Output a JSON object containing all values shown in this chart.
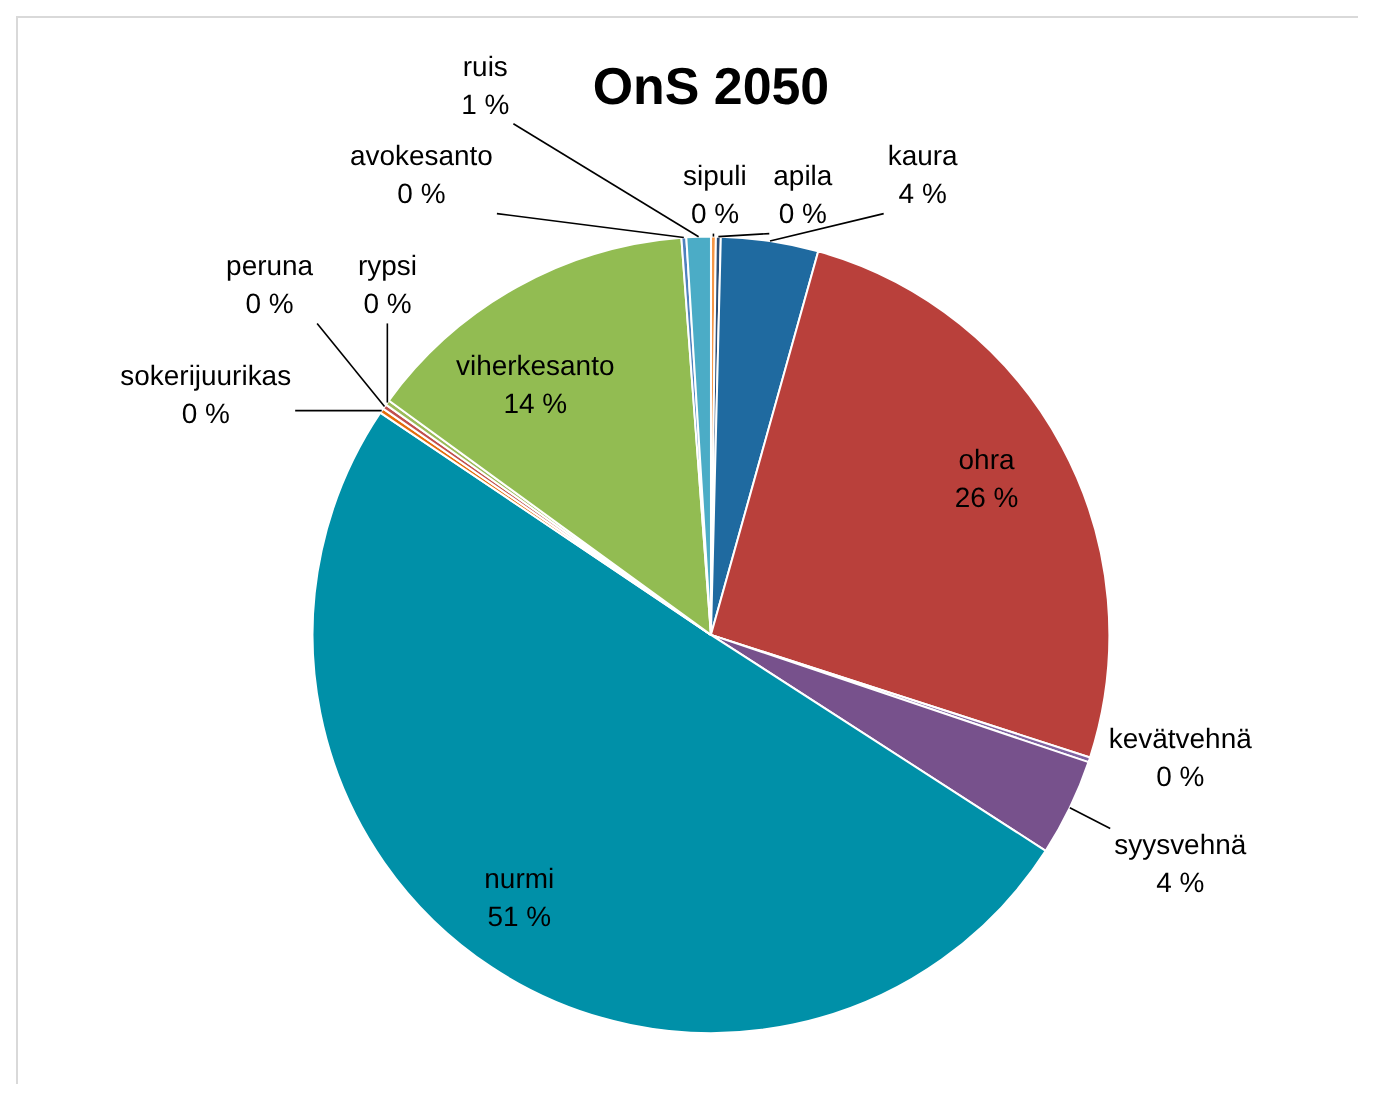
{
  "chart_data": {
    "type": "pie",
    "title": "OnS 2050",
    "categories": [
      "sipuli",
      "apila",
      "kaura",
      "ohra",
      "kevätvehnä",
      "syysvehnä",
      "nurmi",
      "sokerijuurikas",
      "peruna",
      "rypsi",
      "viherkesanto",
      "avokesanto",
      "ruis"
    ],
    "values": [
      0.2,
      0.2,
      4,
      26,
      0.2,
      4,
      51,
      0.2,
      0.2,
      0.2,
      14,
      0.2,
      1
    ],
    "value_labels": [
      "0 %",
      "0 %",
      "4 %",
      "26 %",
      "0 %",
      "4 %",
      "51 %",
      "0 %",
      "0 %",
      "0 %",
      "14 %",
      "0 %",
      "1 %"
    ],
    "colors": [
      "#f79646",
      "#2c4d75",
      "#1f6aa0",
      "#b9403b",
      "#8064a2",
      "#77518c",
      "#0090a8",
      "#e46c0a",
      "#c0504d",
      "#9bbb59",
      "#92bc52",
      "#4f81bd",
      "#4bacc6"
    ],
    "legend": false
  }
}
